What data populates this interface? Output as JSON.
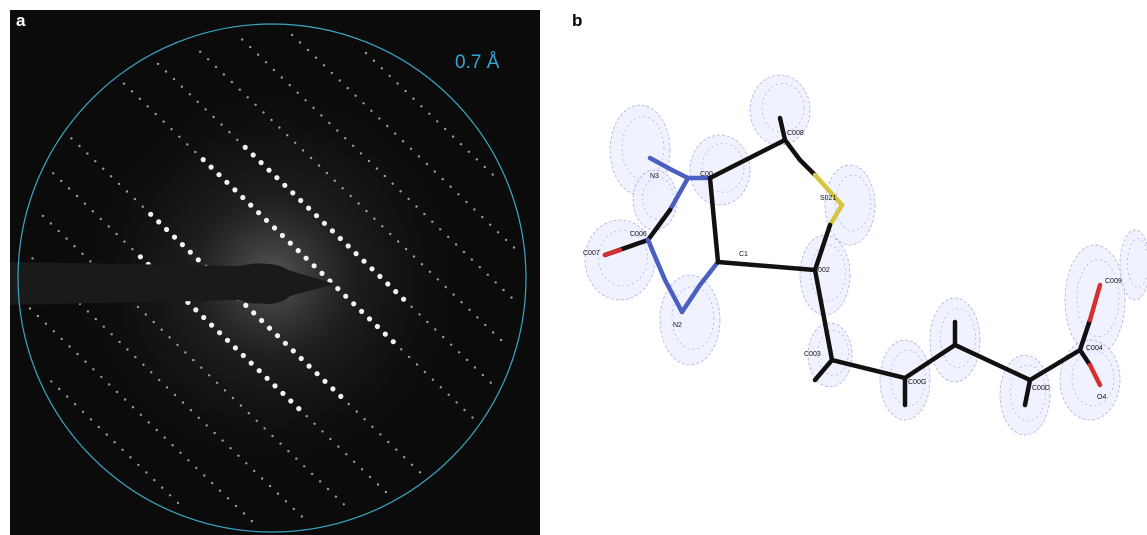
{
  "panels": [
    {
      "label": "a",
      "annotation": "0.7 Å"
    },
    {
      "label": "b",
      "atoms": [
        "N3",
        "C00",
        "C008",
        "S021",
        "C006",
        "C007",
        "C1",
        "N2",
        "C002",
        "C003",
        "C00G",
        "C00D",
        "C004",
        "C009",
        "O4"
      ]
    }
  ]
}
